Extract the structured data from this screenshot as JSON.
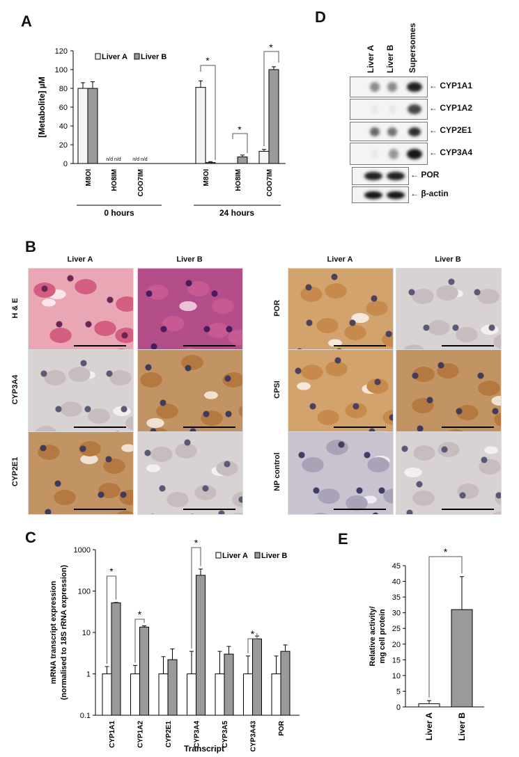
{
  "panel_labels": {
    "a": "A",
    "b": "B",
    "c": "C",
    "d": "D",
    "e": "E"
  },
  "panelA": {
    "ylabel": "[Metabolite] µM",
    "yticks": [
      "0",
      "20",
      "40",
      "60",
      "80",
      "100",
      "120"
    ],
    "legend": [
      "Liver A",
      "Liver B"
    ],
    "groups": [
      "0 hours",
      "24 hours"
    ],
    "categories": [
      "M8OI",
      "HO8IM",
      "COO7IM",
      "M8OI",
      "HO8IM",
      "COO7IM"
    ],
    "nd": "n/d n/d",
    "star": "*"
  },
  "panelB": {
    "col_left": [
      "Liver A",
      "Liver B"
    ],
    "col_right": [
      "Liver A",
      "Liver B"
    ],
    "rows_left": [
      "H & E",
      "CYP3A4",
      "CYP2E1"
    ],
    "rows_right": [
      "POR",
      "CPSI",
      "NP control"
    ]
  },
  "panelC": {
    "ylabel_line1": "mRNA transcript expression",
    "ylabel_line2": "(normalised to 18S rRNA expression)",
    "xlabel": "Transcript",
    "yticks": [
      "1000",
      "100",
      "10",
      "1",
      "0.1"
    ],
    "legend": [
      "Liver A",
      "Liver B"
    ],
    "categories": [
      "CYP1A1",
      "CYP1A2",
      "CYP2E1",
      "CYP3A4",
      "CYP3A5",
      "CYP3A43",
      "POR"
    ],
    "star": "*"
  },
  "panelD": {
    "lanes": [
      "Liver A",
      "Liver B",
      "Supersomes"
    ],
    "blots": [
      "CYP1A1",
      "CYP1A2",
      "CYP2E1",
      "CYP3A4",
      "POR",
      "β-actin"
    ],
    "arrow": "←"
  },
  "panelE": {
    "ylabel_line1": "Relative activity/",
    "ylabel_line2": "mg cell protein",
    "yticks": [
      "0",
      "5",
      "10",
      "15",
      "20",
      "25",
      "30",
      "35",
      "40",
      "45"
    ],
    "categories": [
      "Liver A",
      "Liver B"
    ],
    "star": "*"
  },
  "chart_data": [
    {
      "type": "bar",
      "title": "",
      "ylabel": "[Metabolite] µM",
      "ylim": [
        0,
        120
      ],
      "categories": [
        "M8OI (0 hours)",
        "HO8IM (0 hours)",
        "COO7IM (0 hours)",
        "M8OI (24 hours)",
        "HO8IM (24 hours)",
        "COO7IM (24 hours)"
      ],
      "series": [
        {
          "name": "Liver A",
          "values": [
            80,
            null,
            null,
            81,
            null,
            13
          ],
          "errors": [
            6,
            0,
            0,
            7,
            0,
            2
          ]
        },
        {
          "name": "Liver B",
          "values": [
            80,
            null,
            null,
            1,
            7,
            100
          ],
          "errors": [
            7,
            0,
            0,
            1,
            2,
            3
          ]
        }
      ],
      "colors": {
        "Liver A": "#f4f4f4",
        "Liver B": "#9a9a9a"
      },
      "legend": "top-left"
    },
    {
      "type": "bar",
      "xlabel": "Transcript",
      "ylabel": "mRNA transcript expression (normalised to 18S rRNA expression)",
      "yscale": "log",
      "ylim": [
        0.1,
        1000
      ],
      "categories": [
        "CYP1A1",
        "CYP1A2",
        "CYP2E1",
        "CYP3A4",
        "CYP3A5",
        "CYP3A43",
        "POR"
      ],
      "series": [
        {
          "name": "Liver A",
          "values": [
            1,
            1,
            1,
            1,
            1,
            1,
            1
          ],
          "errors_upper": [
            1.5,
            1.6,
            2.6,
            3.5,
            3.5,
            2.7,
            2.7
          ]
        },
        {
          "name": "Liver B",
          "values": [
            52,
            13.5,
            2.2,
            240,
            3.0,
            7.0,
            3.5
          ],
          "errors_upper": [
            53,
            14.5,
            4.0,
            340,
            4.6,
            8.2,
            5.0
          ]
        }
      ],
      "significant": [
        "CYP1A1",
        "CYP1A2",
        "CYP3A4",
        "CYP3A43"
      ],
      "legend": "top-right"
    },
    {
      "type": "bar",
      "ylabel": "Relative activity/ mg cell protein",
      "ylim": [
        0,
        45
      ],
      "categories": [
        "Liver A",
        "Liver B"
      ],
      "values": [
        1,
        31
      ],
      "errors": [
        1,
        10.5
      ]
    }
  ]
}
